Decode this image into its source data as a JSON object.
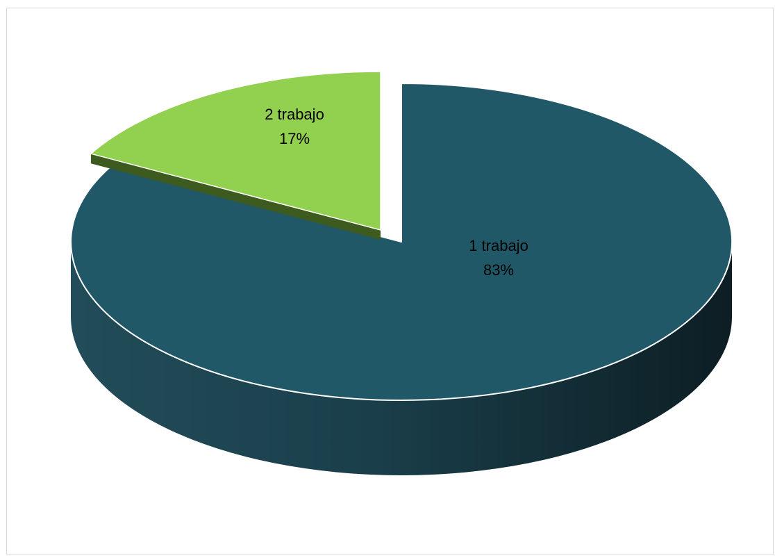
{
  "chart_data": {
    "type": "pie",
    "style": "3d-exploded",
    "title": "",
    "slices": [
      {
        "category": "1 trabajo",
        "value": 83,
        "percent_label": "83%",
        "color": "#215868",
        "side_color": "#173f4b"
      },
      {
        "category": "2 trabajo",
        "value": 17,
        "percent_label": "17%",
        "color": "#92d050",
        "side_color": "#3d5a1f"
      }
    ],
    "legend": "none",
    "data_labels": "category-and-percent"
  }
}
